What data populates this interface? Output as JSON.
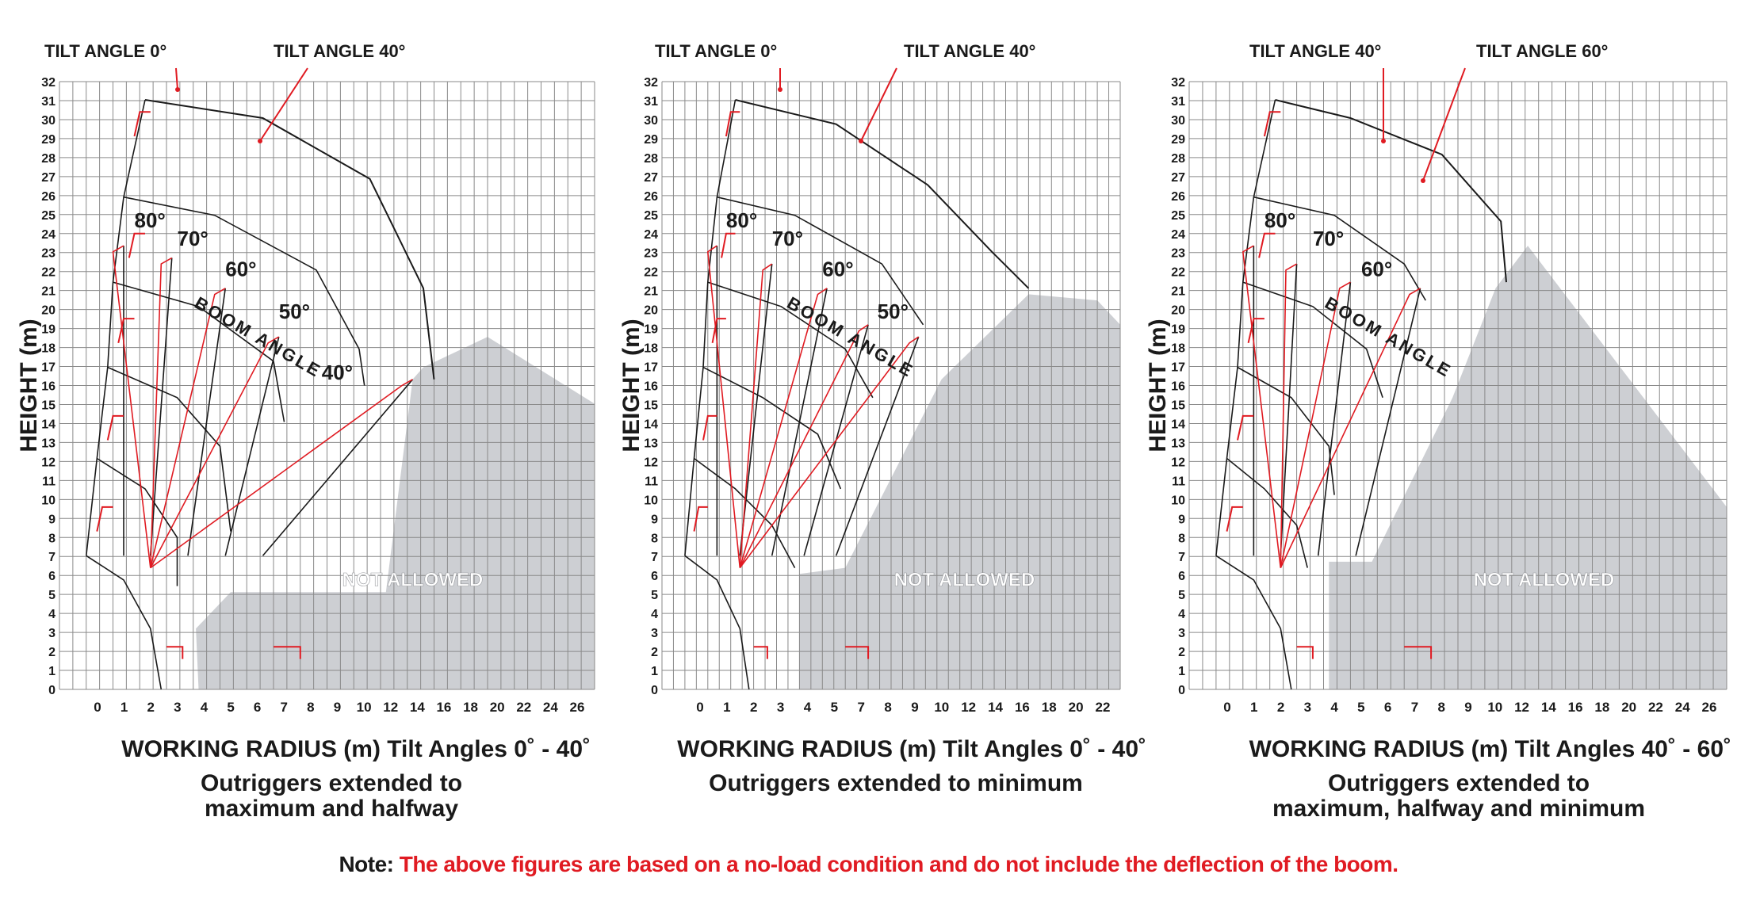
{
  "panels": [
    {
      "tilt_labels": [
        "TILT ANGLE  0°",
        "TILT ANGLE  40°"
      ],
      "y_axis_label": "HEIGHT (m)",
      "y_ticks": [
        "0",
        "1",
        "2",
        "3",
        "4",
        "5",
        "6",
        "7",
        "8",
        "9",
        "10",
        "11",
        "12",
        "13",
        "14",
        "15",
        "16",
        "17",
        "18",
        "19",
        "20",
        "21",
        "22",
        "23",
        "24",
        "25",
        "26",
        "27",
        "28",
        "29",
        "30",
        "31",
        "32"
      ],
      "x_ticks": [
        "0",
        "1",
        "2",
        "3",
        "4",
        "5",
        "6",
        "7",
        "8",
        "9",
        "10",
        "12",
        "14",
        "16",
        "18",
        "20",
        "22",
        "24",
        "26"
      ],
      "boom_angles": [
        "80°",
        "70°",
        "60°",
        "50°",
        "40°"
      ],
      "boom_angle_label": "BOOM ANGLE",
      "region_label": "NOT ALLOWED",
      "x_title": "WORKING RADIUS (m)  Tilt Angles 0˚ - 40˚",
      "subtitle_lines": [
        "Outriggers extended to",
        "maximum and halfway"
      ]
    },
    {
      "tilt_labels": [
        "TILT ANGLE  0°",
        "TILT ANGLE  40°"
      ],
      "y_axis_label": "HEIGHT (m)",
      "y_ticks": [
        "0",
        "1",
        "2",
        "3",
        "4",
        "5",
        "6",
        "7",
        "8",
        "9",
        "10",
        "11",
        "12",
        "13",
        "14",
        "15",
        "16",
        "17",
        "18",
        "19",
        "20",
        "21",
        "22",
        "23",
        "24",
        "25",
        "26",
        "27",
        "28",
        "29",
        "30",
        "31",
        "32"
      ],
      "x_ticks": [
        "0",
        "1",
        "2",
        "3",
        "4",
        "5",
        "7",
        "8",
        "9",
        "10",
        "12",
        "14",
        "16",
        "18",
        "20",
        "22"
      ],
      "boom_angles": [
        "80°",
        "70°",
        "60°",
        "50°"
      ],
      "boom_angle_label": "BOOM ANGLE",
      "region_label": "NOT ALLOWED",
      "x_title": "WORKING RADIUS (m)  Tilt Angles 0˚ - 40˚",
      "subtitle_lines": [
        "Outriggers extended to minimum"
      ]
    },
    {
      "tilt_labels": [
        "TILT ANGLE  40°",
        "TILT ANGLE  60°"
      ],
      "y_axis_label": "HEIGHT (m)",
      "y_ticks": [
        "0",
        "1",
        "2",
        "3",
        "4",
        "5",
        "6",
        "7",
        "8",
        "9",
        "10",
        "11",
        "12",
        "13",
        "14",
        "15",
        "16",
        "17",
        "18",
        "19",
        "20",
        "21",
        "22",
        "23",
        "24",
        "25",
        "26",
        "27",
        "28",
        "29",
        "30",
        "31",
        "32"
      ],
      "x_ticks": [
        "0",
        "1",
        "2",
        "3",
        "4",
        "5",
        "6",
        "7",
        "8",
        "9",
        "10",
        "12",
        "14",
        "16",
        "18",
        "20",
        "22",
        "24",
        "26"
      ],
      "boom_angles": [
        "80°",
        "70°",
        "60°"
      ],
      "boom_angle_label": "BOOM ANGLE",
      "region_label": "NOT ALLOWED",
      "x_title": "WORKING RADIUS (m)  Tilt Angles 40˚ - 60˚",
      "subtitle_lines": [
        "Outriggers extended to",
        "maximum, halfway and minimum"
      ]
    }
  ],
  "note": {
    "label": "Note:",
    "text": "The above figures are based on a no-load condition and do not include the deflection of the boom."
  },
  "colors": {
    "grid": "#8a8a8a",
    "envelope": "#1a1a1a",
    "boom": "#e01b22",
    "not_allowed": "#cdcfd3"
  }
}
